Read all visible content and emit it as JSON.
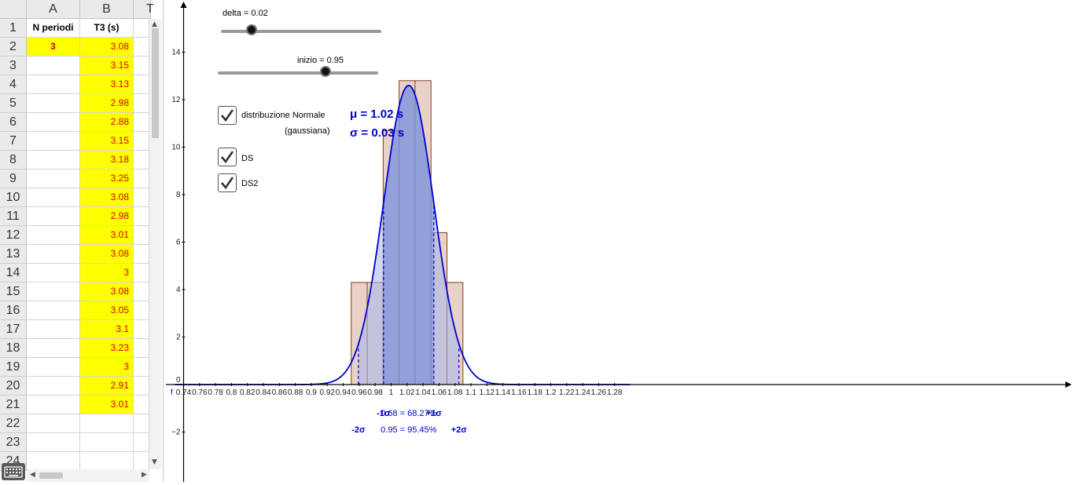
{
  "spreadsheet": {
    "columns": [
      "A",
      "B",
      "T"
    ],
    "rows": [
      "1",
      "2",
      "3",
      "4",
      "5",
      "6",
      "7",
      "8",
      "9",
      "10",
      "11",
      "12",
      "13",
      "14",
      "15",
      "16",
      "17",
      "18",
      "19",
      "20",
      "21",
      "22",
      "23",
      "24"
    ],
    "header": {
      "a": "N periodi",
      "b": "T3 (s)"
    },
    "a2": "3",
    "b_values": [
      "3.08",
      "3.15",
      "3.13",
      "2.98",
      "2.88",
      "3.15",
      "3.18",
      "3.25",
      "3.08",
      "2.98",
      "3.01",
      "3.08",
      "3",
      "3.08",
      "3.05",
      "3.1",
      "3.23",
      "3",
      "2.91",
      "3.01"
    ]
  },
  "sliders": {
    "delta": {
      "label": "delta = 0.02",
      "fraction": 0.19
    },
    "inizio": {
      "label": "inizio = 0.95",
      "fraction": 0.67
    }
  },
  "checkboxes": {
    "normale": {
      "label": "distribuzione Normale",
      "sub": "(gaussiana)",
      "checked": true
    },
    "ds": {
      "label": "DS",
      "checked": true
    },
    "ds2": {
      "label": "DS2",
      "checked": true
    }
  },
  "stats": {
    "mu": "μ = 1.02 s",
    "sigma": "σ = 0.03 s"
  },
  "annotations": {
    "minus1": "-1σ",
    "plus1": "+1σ",
    "range1": "0.68 = 68.27%",
    "minus2": "-2σ",
    "plus2": "+2σ",
    "range2": "0.95 = 95.45%"
  },
  "axes": {
    "x_label": "f",
    "origin_label": "0"
  },
  "colors": {
    "curve": "#0000cc",
    "bar_fill": "#e8d2c8",
    "bar_stroke": "#8b3a1a",
    "band1": "#6e83d6",
    "band2": "#a6b6ee"
  },
  "chart_data": {
    "type": "bar",
    "x_ticks": [
      0.74,
      0.76,
      0.78,
      0.8,
      0.82,
      0.84,
      0.86,
      0.88,
      0.9,
      0.92,
      0.94,
      0.96,
      0.98,
      1,
      1.02,
      1.04,
      1.06,
      1.08,
      1.1,
      1.12,
      1.14,
      1.16,
      1.18,
      1.2,
      1.22,
      1.24,
      1.26,
      1.28
    ],
    "x_tick_labels": [
      "0.74",
      "0.76",
      "0.78",
      "0.8",
      "0.82",
      "0.84",
      "0.86",
      "0.88",
      "0.9",
      "0.92",
      "0.94",
      "0.96",
      "0.98",
      "1",
      "1.02",
      "1.04",
      "1.06",
      "1.08",
      "1.1",
      "1.12",
      "1.14",
      "1.16",
      "1.18",
      "1.2",
      "1.22",
      "1.24",
      "1.26",
      "1.28"
    ],
    "y_ticks": [
      -2,
      2,
      4,
      6,
      8,
      10,
      12,
      14
    ],
    "y_tick_labels": [
      "−2",
      "2",
      "4",
      "6",
      "8",
      "10",
      "12",
      "14"
    ],
    "bins": [
      {
        "x0": 0.95,
        "x1": 0.97,
        "h": 4.3
      },
      {
        "x0": 0.97,
        "x1": 0.99,
        "h": 4.3
      },
      {
        "x0": 0.99,
        "x1": 1.01,
        "h": 10.7
      },
      {
        "x0": 1.01,
        "x1": 1.03,
        "h": 12.8
      },
      {
        "x0": 1.03,
        "x1": 1.05,
        "h": 12.8
      },
      {
        "x0": 1.05,
        "x1": 1.07,
        "h": 6.4
      },
      {
        "x0": 1.07,
        "x1": 1.09,
        "h": 4.3
      }
    ],
    "normal": {
      "mu": 1.022,
      "sigma": 0.0315
    },
    "xlim": [
      0.729,
      1.3
    ],
    "ylim": [
      -4,
      16
    ],
    "xlabel": "f",
    "ylabel": ""
  }
}
